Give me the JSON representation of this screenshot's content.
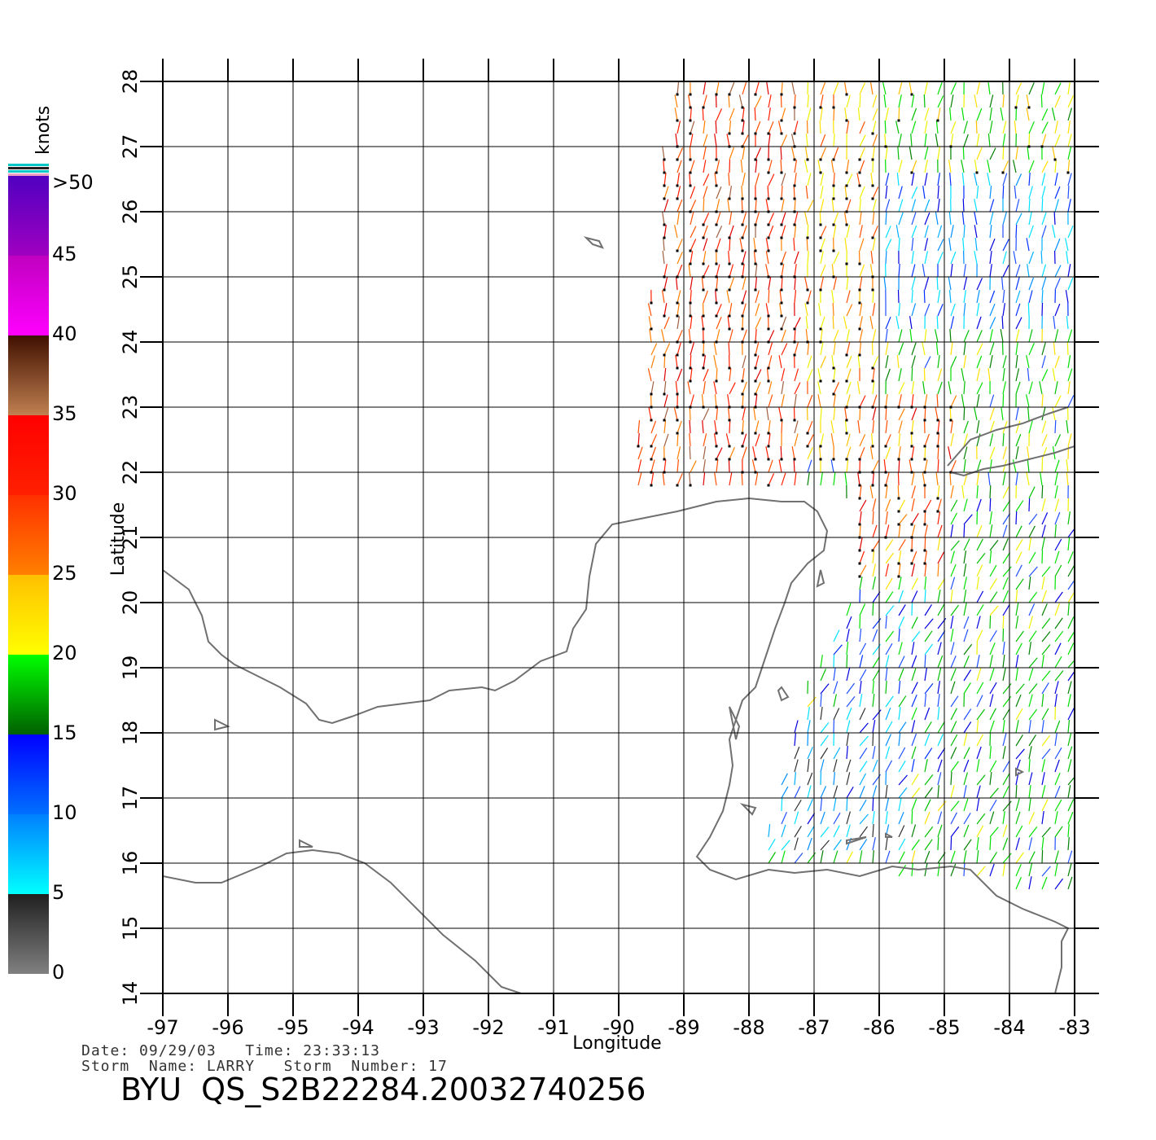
{
  "map": {
    "lon_range": [
      -97,
      -83
    ],
    "lat_range": [
      14,
      28
    ],
    "lon_ticks": [
      "-97",
      "-96",
      "-95",
      "-94",
      "-93",
      "-92",
      "-91",
      "-90",
      "-89",
      "-88",
      "-87",
      "-86",
      "-85",
      "-84",
      "-83"
    ],
    "lat_ticks": [
      "14",
      "15",
      "16",
      "17",
      "18",
      "19",
      "20",
      "21",
      "22",
      "23",
      "24",
      "25",
      "26",
      "27",
      "28"
    ],
    "xlabel": "Longitude",
    "ylabel": "Latitude",
    "grid": true,
    "coast_color": "#707070",
    "grid_color": "#000000"
  },
  "colorbar": {
    "unit": "knots",
    "labels": [
      ">50",
      "45",
      "40",
      "35",
      "30",
      "25",
      "20",
      "15",
      "10",
      "5",
      "0"
    ],
    "segments": [
      {
        "from": 0,
        "to": 5,
        "colors": [
          "#808080",
          "#202020"
        ]
      },
      {
        "from": 5,
        "to": 10,
        "colors": [
          "#00ffff",
          "#0080ff"
        ]
      },
      {
        "from": 10,
        "to": 15,
        "colors": [
          "#0070ff",
          "#0000ff"
        ]
      },
      {
        "from": 15,
        "to": 20,
        "colors": [
          "#006000",
          "#00ff00"
        ]
      },
      {
        "from": 20,
        "to": 25,
        "colors": [
          "#ffff00",
          "#ffc000"
        ]
      },
      {
        "from": 25,
        "to": 30,
        "colors": [
          "#ff8000",
          "#ff3000"
        ]
      },
      {
        "from": 30,
        "to": 35,
        "colors": [
          "#ff2000",
          "#ff0000"
        ]
      },
      {
        "from": 35,
        "to": 40,
        "colors": [
          "#c08050",
          "#401000"
        ]
      },
      {
        "from": 40,
        "to": 45,
        "colors": [
          "#ff00ff",
          "#c000c0"
        ]
      },
      {
        "from": 45,
        "to": 50,
        "colors": [
          "#a000c0",
          "#5000c0"
        ]
      }
    ]
  },
  "caption": {
    "line1": "Date: 09/29/03   Time: 23:33:13",
    "line2": "Storm  Name: LARRY   Storm  Number: 17",
    "title": "BYU  QS_S2B22284.20032740256"
  },
  "wind_field": {
    "description_regions": [
      {
        "lon": [
          -89.8,
          -87.2
        ],
        "lat": [
          21.6,
          27.9
        ],
        "speed": 30
      },
      {
        "lon": [
          -87.2,
          -86.0
        ],
        "lat": [
          22.1,
          27.9
        ],
        "speed": 24
      },
      {
        "lon": [
          -86.0,
          -83.0
        ],
        "lat": [
          24.0,
          26.5
        ],
        "speed": 10
      },
      {
        "lon": [
          -86.3,
          -84.8
        ],
        "lat": [
          20.3,
          23.0
        ],
        "speed": 28
      },
      {
        "lon": [
          -87.0,
          -83.0
        ],
        "lat": [
          17.2,
          20.0
        ],
        "speed": 13
      },
      {
        "lon": [
          -87.8,
          -85.5
        ],
        "lat": [
          16.0,
          18.2
        ],
        "speed": 8
      },
      {
        "lon": [
          -85.0,
          -83.0
        ],
        "lat": [
          15.5,
          21.5
        ],
        "speed": 17
      },
      {
        "lon": [
          -86.0,
          -83.0
        ],
        "lat": [
          26.5,
          27.9
        ],
        "speed": 20
      }
    ]
  }
}
